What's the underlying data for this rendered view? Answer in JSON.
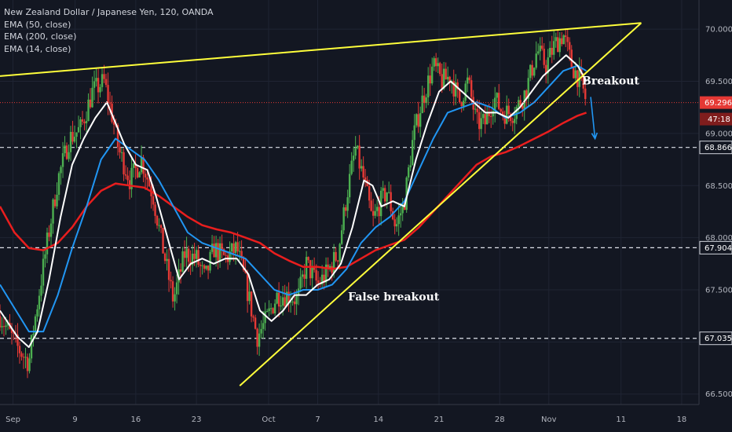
{
  "legend": {
    "symbol": "New Zealand Dollar / Japanese Yen, 120, OANDA",
    "ema1": "EMA (50, close)",
    "ema2": "EMA (200, close)",
    "ema3": "EMA (14, close)"
  },
  "chart_data": {
    "type": "line",
    "title": "New Zealand Dollar / Japanese Yen, 120, OANDA",
    "ylim": [
      66.4,
      70.28
    ],
    "xlim": [
      0,
      24.2
    ],
    "y_ticks": [
      "70.000",
      "69.500",
      "69.000",
      "68.500",
      "68.000",
      "67.500",
      "67.000",
      "66.500"
    ],
    "y_tick_values": [
      70.0,
      69.5,
      69.0,
      68.5,
      68.0,
      67.5,
      67.0,
      66.5
    ],
    "x_ticks": [
      {
        "label": "Sep",
        "x": 0.45
      },
      {
        "label": "9",
        "x": 2.6
      },
      {
        "label": "16",
        "x": 4.7
      },
      {
        "label": "23",
        "x": 6.8
      },
      {
        "label": "Oct",
        "x": 9.3
      },
      {
        "label": "7",
        "x": 11.0
      },
      {
        "label": "14",
        "x": 13.1
      },
      {
        "label": "21",
        "x": 15.2
      },
      {
        "label": "28",
        "x": 17.3
      },
      {
        "label": "Nov",
        "x": 19.0
      },
      {
        "label": "11",
        "x": 21.5
      },
      {
        "label": "18",
        "x": 23.6
      }
    ],
    "price_series": {
      "name": "NZD/JPY",
      "x": [
        0,
        0.6,
        1.0,
        1.2,
        1.6,
        2.0,
        2.4,
        2.8,
        3.2,
        3.6,
        3.9,
        4.1,
        4.5,
        4.9,
        5.3,
        5.6,
        6.0,
        6.4,
        6.8,
        7.1,
        7.4,
        7.8,
        8.2,
        8.6,
        8.9,
        9.2,
        9.6,
        10.0,
        10.3,
        10.6,
        11.0,
        11.3,
        11.7,
        12.0,
        12.3,
        12.6,
        12.9,
        13.1,
        13.4,
        13.7,
        14.0,
        14.3,
        14.6,
        15.0,
        15.3,
        15.6,
        15.9,
        16.2,
        16.5,
        16.8,
        17.1,
        17.4,
        17.8,
        18.2,
        18.6,
        18.9,
        19.2,
        19.5,
        19.8,
        20.1,
        20.3
      ],
      "values": [
        67.25,
        66.95,
        66.8,
        67.2,
        67.9,
        68.55,
        68.95,
        69.05,
        69.4,
        69.5,
        69.15,
        68.85,
        68.55,
        68.75,
        68.4,
        67.95,
        67.4,
        67.85,
        67.8,
        67.6,
        67.9,
        67.8,
        67.9,
        67.45,
        67.05,
        67.2,
        67.45,
        67.45,
        67.4,
        67.75,
        67.55,
        67.65,
        67.85,
        68.4,
        68.85,
        68.55,
        68.15,
        68.3,
        68.45,
        68.1,
        68.35,
        68.95,
        69.3,
        69.65,
        69.5,
        69.55,
        69.3,
        69.5,
        69.1,
        69.1,
        69.35,
        69.2,
        69.2,
        69.4,
        69.8,
        69.65,
        69.85,
        69.95,
        69.65,
        69.5,
        69.3
      ]
    },
    "series": [
      {
        "name": "EMA (14, close)",
        "color": "#ffffff",
        "x": [
          0,
          0.6,
          1.0,
          1.3,
          1.7,
          2.1,
          2.5,
          2.9,
          3.3,
          3.7,
          4.0,
          4.3,
          4.7,
          5.1,
          5.4,
          5.8,
          6.2,
          6.6,
          7.0,
          7.4,
          7.8,
          8.2,
          8.6,
          9.0,
          9.4,
          9.8,
          10.2,
          10.6,
          11.0,
          11.4,
          11.8,
          12.2,
          12.6,
          12.9,
          13.2,
          13.6,
          14.0,
          14.4,
          14.8,
          15.2,
          15.6,
          16.0,
          16.4,
          16.8,
          17.2,
          17.6,
          18.0,
          18.4,
          18.8,
          19.2,
          19.6,
          20.0,
          20.3
        ],
        "values": [
          67.3,
          67.05,
          66.95,
          67.1,
          67.6,
          68.2,
          68.7,
          68.95,
          69.15,
          69.3,
          69.1,
          68.9,
          68.7,
          68.65,
          68.4,
          68.0,
          67.6,
          67.75,
          67.8,
          67.75,
          67.8,
          67.8,
          67.65,
          67.3,
          67.2,
          67.3,
          67.45,
          67.45,
          67.55,
          67.6,
          67.75,
          68.1,
          68.55,
          68.5,
          68.3,
          68.35,
          68.3,
          68.75,
          69.1,
          69.4,
          69.5,
          69.4,
          69.3,
          69.2,
          69.2,
          69.15,
          69.25,
          69.4,
          69.55,
          69.65,
          69.75,
          69.65,
          69.5
        ]
      },
      {
        "name": "EMA (50, close)",
        "color": "#2196f3",
        "x": [
          0,
          1.0,
          1.5,
          2.0,
          2.5,
          3.0,
          3.5,
          4.0,
          4.5,
          5.0,
          5.5,
          6.0,
          6.5,
          7.0,
          7.5,
          8.0,
          8.5,
          9.0,
          9.5,
          10.0,
          10.5,
          11.0,
          11.5,
          12.0,
          12.5,
          13.0,
          13.5,
          14.0,
          14.5,
          15.0,
          15.5,
          16.0,
          16.5,
          17.0,
          17.5,
          18.0,
          18.5,
          19.0,
          19.5,
          20.0,
          20.3
        ],
        "values": [
          67.55,
          67.1,
          67.1,
          67.45,
          67.9,
          68.3,
          68.75,
          68.95,
          68.85,
          68.75,
          68.55,
          68.3,
          68.05,
          67.95,
          67.9,
          67.85,
          67.8,
          67.65,
          67.5,
          67.45,
          67.5,
          67.5,
          67.55,
          67.7,
          67.95,
          68.1,
          68.2,
          68.35,
          68.65,
          68.95,
          69.2,
          69.25,
          69.3,
          69.25,
          69.15,
          69.2,
          69.3,
          69.45,
          69.6,
          69.65,
          69.6
        ]
      },
      {
        "name": "EMA (200, close)",
        "color": "#e91e1e",
        "x": [
          0,
          0.5,
          1.0,
          1.5,
          2.0,
          2.5,
          3.0,
          3.5,
          4.0,
          4.5,
          5.0,
          5.5,
          6.0,
          6.5,
          7.0,
          7.5,
          8.0,
          8.5,
          9.0,
          9.5,
          10.0,
          10.5,
          11.0,
          11.5,
          12.0,
          12.5,
          13.0,
          13.5,
          14.0,
          14.5,
          15.0,
          15.5,
          16.0,
          16.5,
          17.0,
          17.5,
          18.0,
          18.5,
          19.0,
          19.5,
          20.0,
          20.3
        ],
        "values": [
          68.3,
          68.05,
          67.9,
          67.88,
          67.95,
          68.1,
          68.3,
          68.45,
          68.52,
          68.5,
          68.48,
          68.4,
          68.3,
          68.2,
          68.12,
          68.08,
          68.05,
          68.0,
          67.95,
          67.85,
          67.78,
          67.72,
          67.72,
          67.7,
          67.72,
          67.8,
          67.88,
          67.93,
          67.98,
          68.1,
          68.25,
          68.4,
          68.55,
          68.7,
          68.78,
          68.82,
          68.88,
          68.95,
          69.02,
          69.1,
          69.17,
          69.2
        ]
      }
    ],
    "trendlines": [
      {
        "name": "upper-resistance",
        "color": "#ffff3b",
        "points": [
          [
            0,
            69.55
          ],
          [
            22.2,
            70.06
          ]
        ]
      },
      {
        "name": "lower-support",
        "color": "#ffff3b",
        "points": [
          [
            8.3,
            66.58
          ],
          [
            22.2,
            70.06
          ]
        ]
      }
    ],
    "horizontal_levels": [
      68.866,
      67.904,
      67.035
    ],
    "current_price": {
      "value": 69.296,
      "label": "69.296",
      "countdown": "47:18"
    },
    "level_labels": [
      "68.866",
      "67.904",
      "67.035"
    ],
    "annotations": [
      {
        "text": "False breakout",
        "x": 12.05,
        "y": 67.4
      },
      {
        "text": "Breakout",
        "x": 20.15,
        "y": 69.47
      }
    ],
    "breakout_arrow": {
      "from": [
        20.45,
        69.35
      ],
      "to": [
        20.6,
        68.95
      ],
      "color": "#2196f3"
    }
  }
}
